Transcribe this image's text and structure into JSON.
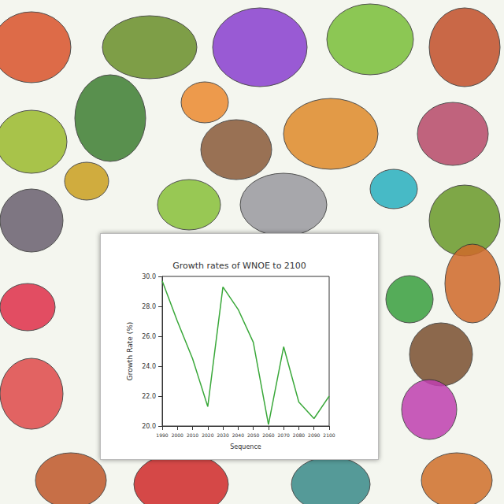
{
  "chart_data": {
    "type": "line",
    "title": "Growth rates of WNOE to 2100",
    "x_label": "Sequence",
    "y_label": "Growth Rate (%)",
    "categories": [
      "1990",
      "2000",
      "2010",
      "2020",
      "2030",
      "2040",
      "2050",
      "2060",
      "2070",
      "2080",
      "2090",
      "2100"
    ],
    "values": [
      29.7,
      27.0,
      24.5,
      21.3,
      29.3,
      27.8,
      25.6,
      20.1,
      25.3,
      21.6,
      20.5,
      22.0
    ],
    "color": "#3aa83a",
    "ylim": [
      20,
      30
    ],
    "yticks": [
      {
        "value": 20,
        "label": "20.0"
      },
      {
        "value": 22,
        "label": "22.0"
      },
      {
        "value": 24,
        "label": "24.0"
      },
      {
        "value": 26,
        "label": "26.0"
      },
      {
        "value": 28,
        "label": "28.0"
      },
      {
        "value": 30,
        "label": "30.0"
      }
    ],
    "grid": false
  }
}
